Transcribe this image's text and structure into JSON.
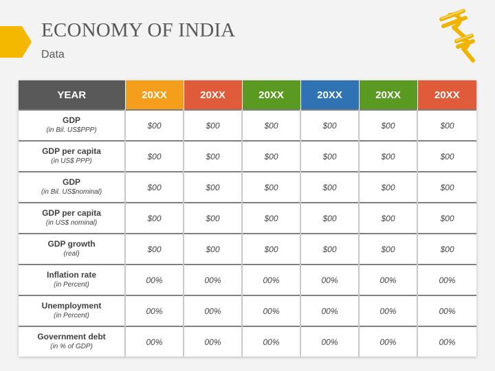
{
  "title": "ECONOMY OF INDIA",
  "subtitle": "Data",
  "icon": "rupee-currency-icon",
  "colors": {
    "accent": "#f5b800",
    "year_header_bg": "#595959",
    "columns": [
      "#f59e1b",
      "#df5b3a",
      "#5a9a22",
      "#2f73b5",
      "#5a9a22",
      "#df5b3a"
    ]
  },
  "table": {
    "year_header": "YEAR",
    "columns": [
      "20XX",
      "20XX",
      "20XX",
      "20XX",
      "20XX",
      "20XX"
    ],
    "rows": [
      {
        "label": "GDP",
        "sub": "(in Bil. US$PPP)",
        "values": [
          "$00",
          "$00",
          "$00",
          "$00",
          "$00",
          "$00"
        ]
      },
      {
        "label": "GDP per capita",
        "sub": "(in US$ PPP)",
        "values": [
          "$00",
          "$00",
          "$00",
          "$00",
          "$00",
          "$00"
        ]
      },
      {
        "label": "GDP",
        "sub": "(in Bil. US$nominal)",
        "values": [
          "$00",
          "$00",
          "$00",
          "$00",
          "$00",
          "$00"
        ]
      },
      {
        "label": "GDP per capita",
        "sub": "(in US$ nominal)",
        "values": [
          "$00",
          "$00",
          "$00",
          "$00",
          "$00",
          "$00"
        ]
      },
      {
        "label": "GDP growth",
        "sub": "(real)",
        "values": [
          "$00",
          "$00",
          "$00",
          "$00",
          "$00",
          "$00"
        ]
      },
      {
        "label": "Inflation rate",
        "sub": "(in Percent)",
        "values": [
          "00%",
          "00%",
          "00%",
          "00%",
          "00%",
          "00%"
        ]
      },
      {
        "label": "Unemployment",
        "sub": "(in Percent)",
        "values": [
          "00%",
          "00%",
          "00%",
          "00%",
          "00%",
          "00%"
        ]
      },
      {
        "label": "Government debt",
        "sub": "(in % of GDP)",
        "values": [
          "00%",
          "00%",
          "00%",
          "00%",
          "00%",
          "00%"
        ]
      }
    ]
  }
}
